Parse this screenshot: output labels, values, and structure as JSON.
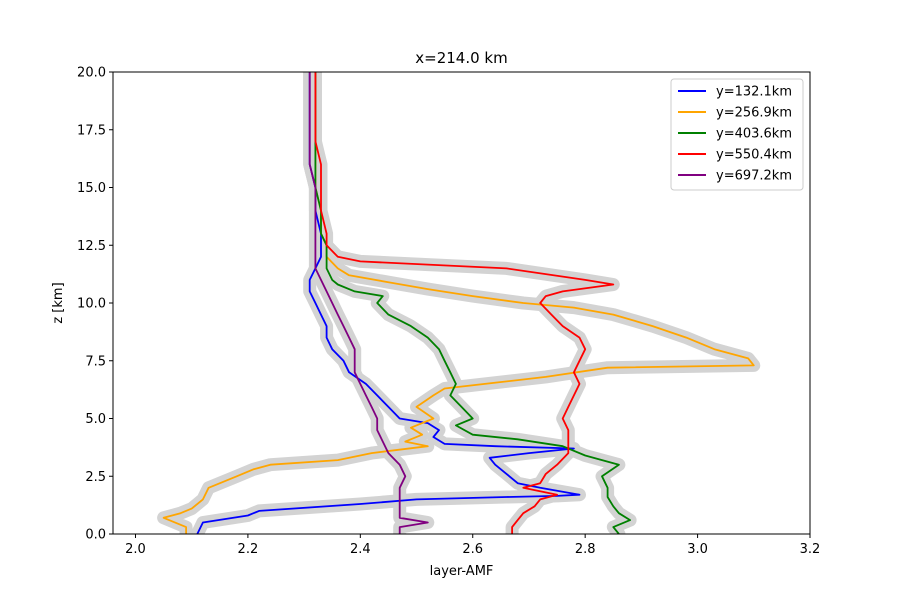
{
  "chart_data": {
    "type": "line",
    "title": "x=214.0 km",
    "xlabel": "layer-AMF",
    "ylabel": "z [km]",
    "xlim": [
      1.96,
      3.2
    ],
    "ylim": [
      0,
      20
    ],
    "xticks": [
      "2.0",
      "2.2",
      "2.4",
      "2.6",
      "2.8",
      "3.0",
      "3.2"
    ],
    "xtick_values": [
      2.0,
      2.2,
      2.4,
      2.6,
      2.8,
      3.0,
      3.2
    ],
    "yticks": [
      "0.0",
      "2.5",
      "5.0",
      "7.5",
      "10.0",
      "12.5",
      "15.0",
      "17.5",
      "20.0"
    ],
    "ytick_values": [
      0,
      2.5,
      5,
      7.5,
      10,
      12.5,
      15,
      17.5,
      20
    ],
    "grid": false,
    "legend_position": "upper right",
    "uncertainty_band_color": "#d3d3d3",
    "series": [
      {
        "name": "y=132.1km",
        "color": "#0000ff",
        "points": [
          [
            2.11,
            0
          ],
          [
            2.12,
            0.5
          ],
          [
            2.2,
            0.8
          ],
          [
            2.22,
            1.0
          ],
          [
            2.4,
            1.3
          ],
          [
            2.5,
            1.5
          ],
          [
            2.66,
            1.6
          ],
          [
            2.75,
            1.65
          ],
          [
            2.79,
            1.7
          ],
          [
            2.72,
            2.0
          ],
          [
            2.68,
            2.2
          ],
          [
            2.66,
            2.6
          ],
          [
            2.64,
            3.0
          ],
          [
            2.63,
            3.3
          ],
          [
            2.7,
            3.5
          ],
          [
            2.78,
            3.7
          ],
          [
            2.64,
            3.8
          ],
          [
            2.55,
            3.9
          ],
          [
            2.53,
            4.2
          ],
          [
            2.54,
            4.5
          ],
          [
            2.52,
            4.8
          ],
          [
            2.47,
            5.0
          ],
          [
            2.45,
            5.5
          ],
          [
            2.43,
            6.0
          ],
          [
            2.41,
            6.5
          ],
          [
            2.38,
            7.0
          ],
          [
            2.37,
            7.5
          ],
          [
            2.35,
            8.0
          ],
          [
            2.34,
            8.5
          ],
          [
            2.34,
            9.0
          ],
          [
            2.33,
            9.5
          ],
          [
            2.32,
            10.0
          ],
          [
            2.31,
            10.5
          ],
          [
            2.31,
            11.0
          ],
          [
            2.32,
            11.5
          ],
          [
            2.33,
            12.0
          ],
          [
            2.33,
            12.5
          ],
          [
            2.33,
            13.0
          ],
          [
            2.32,
            14.0
          ],
          [
            2.32,
            15.0
          ],
          [
            2.31,
            16.0
          ],
          [
            2.31,
            17.0
          ],
          [
            2.31,
            18.0
          ],
          [
            2.31,
            19.0
          ],
          [
            2.31,
            20.0
          ]
        ]
      },
      {
        "name": "y=256.9km",
        "color": "#ffa500",
        "points": [
          [
            2.09,
            0
          ],
          [
            2.09,
            0.3
          ],
          [
            2.05,
            0.7
          ],
          [
            2.08,
            0.9
          ],
          [
            2.1,
            1.1
          ],
          [
            2.12,
            1.5
          ],
          [
            2.13,
            2.0
          ],
          [
            2.18,
            2.5
          ],
          [
            2.21,
            2.8
          ],
          [
            2.24,
            3.0
          ],
          [
            2.36,
            3.2
          ],
          [
            2.42,
            3.5
          ],
          [
            2.52,
            3.8
          ],
          [
            2.48,
            4.0
          ],
          [
            2.51,
            4.3
          ],
          [
            2.49,
            4.6
          ],
          [
            2.53,
            5.0
          ],
          [
            2.5,
            5.5
          ],
          [
            2.53,
            6.0
          ],
          [
            2.55,
            6.3
          ],
          [
            2.73,
            6.8
          ],
          [
            2.84,
            7.2
          ],
          [
            3.1,
            7.3
          ],
          [
            3.09,
            7.6
          ],
          [
            3.03,
            8.0
          ],
          [
            2.98,
            8.5
          ],
          [
            2.92,
            9.0
          ],
          [
            2.85,
            9.5
          ],
          [
            2.78,
            9.8
          ],
          [
            2.69,
            10.0
          ],
          [
            2.6,
            10.3
          ],
          [
            2.52,
            10.6
          ],
          [
            2.45,
            10.9
          ],
          [
            2.38,
            11.2
          ],
          [
            2.36,
            11.5
          ],
          [
            2.34,
            12.0
          ],
          [
            2.34,
            12.5
          ],
          [
            2.33,
            13.0
          ],
          [
            2.33,
            14.0
          ],
          [
            2.32,
            15.0
          ],
          [
            2.32,
            16.0
          ],
          [
            2.32,
            17.0
          ],
          [
            2.32,
            18.0
          ],
          [
            2.32,
            19.0
          ],
          [
            2.32,
            20.0
          ]
        ]
      },
      {
        "name": "y=403.6km",
        "color": "#008000",
        "points": [
          [
            2.86,
            0
          ],
          [
            2.85,
            0.3
          ],
          [
            2.88,
            0.6
          ],
          [
            2.86,
            0.9
          ],
          [
            2.85,
            1.2
          ],
          [
            2.84,
            1.6
          ],
          [
            2.84,
            2.0
          ],
          [
            2.83,
            2.5
          ],
          [
            2.86,
            3.0
          ],
          [
            2.8,
            3.4
          ],
          [
            2.76,
            3.8
          ],
          [
            2.68,
            4.1
          ],
          [
            2.6,
            4.3
          ],
          [
            2.57,
            4.7
          ],
          [
            2.6,
            5.0
          ],
          [
            2.58,
            5.5
          ],
          [
            2.56,
            6.0
          ],
          [
            2.57,
            6.5
          ],
          [
            2.56,
            7.0
          ],
          [
            2.55,
            7.5
          ],
          [
            2.54,
            8.0
          ],
          [
            2.52,
            8.5
          ],
          [
            2.49,
            9.0
          ],
          [
            2.45,
            9.5
          ],
          [
            2.43,
            10.0
          ],
          [
            2.44,
            10.3
          ],
          [
            2.39,
            10.5
          ],
          [
            2.36,
            10.8
          ],
          [
            2.35,
            11.0
          ],
          [
            2.34,
            11.5
          ],
          [
            2.34,
            12.0
          ],
          [
            2.34,
            12.5
          ],
          [
            2.33,
            13.0
          ],
          [
            2.33,
            14.0
          ],
          [
            2.32,
            15.0
          ],
          [
            2.32,
            16.0
          ],
          [
            2.32,
            17.0
          ],
          [
            2.32,
            18.0
          ],
          [
            2.32,
            19.0
          ],
          [
            2.32,
            20.0
          ]
        ]
      },
      {
        "name": "y=550.4km",
        "color": "#ff0000",
        "points": [
          [
            2.67,
            0
          ],
          [
            2.67,
            0.3
          ],
          [
            2.68,
            0.6
          ],
          [
            2.69,
            0.9
          ],
          [
            2.71,
            1.2
          ],
          [
            2.72,
            1.5
          ],
          [
            2.75,
            1.7
          ],
          [
            2.71,
            1.9
          ],
          [
            2.69,
            2.0
          ],
          [
            2.72,
            2.2
          ],
          [
            2.73,
            2.6
          ],
          [
            2.75,
            3.0
          ],
          [
            2.77,
            3.5
          ],
          [
            2.77,
            4.0
          ],
          [
            2.77,
            4.5
          ],
          [
            2.76,
            5.0
          ],
          [
            2.77,
            5.5
          ],
          [
            2.78,
            6.0
          ],
          [
            2.79,
            6.5
          ],
          [
            2.78,
            7.0
          ],
          [
            2.79,
            7.5
          ],
          [
            2.8,
            8.0
          ],
          [
            2.79,
            8.5
          ],
          [
            2.76,
            9.0
          ],
          [
            2.74,
            9.5
          ],
          [
            2.72,
            10.0
          ],
          [
            2.73,
            10.3
          ],
          [
            2.76,
            10.5
          ],
          [
            2.85,
            10.8
          ],
          [
            2.8,
            11.0
          ],
          [
            2.66,
            11.5
          ],
          [
            2.4,
            11.8
          ],
          [
            2.36,
            12.0
          ],
          [
            2.34,
            12.5
          ],
          [
            2.34,
            13.0
          ],
          [
            2.33,
            14.0
          ],
          [
            2.33,
            15.0
          ],
          [
            2.33,
            16.0
          ],
          [
            2.32,
            17.0
          ],
          [
            2.32,
            18.0
          ],
          [
            2.32,
            19.0
          ],
          [
            2.32,
            20.0
          ]
        ]
      },
      {
        "name": "y=697.2km",
        "color": "#800080",
        "points": [
          [
            2.47,
            0
          ],
          [
            2.47,
            0.3
          ],
          [
            2.52,
            0.5
          ],
          [
            2.47,
            0.7
          ],
          [
            2.47,
            1.0
          ],
          [
            2.47,
            1.5
          ],
          [
            2.47,
            2.0
          ],
          [
            2.48,
            2.5
          ],
          [
            2.47,
            3.0
          ],
          [
            2.45,
            3.5
          ],
          [
            2.44,
            4.0
          ],
          [
            2.43,
            4.5
          ],
          [
            2.43,
            5.0
          ],
          [
            2.42,
            5.5
          ],
          [
            2.41,
            6.0
          ],
          [
            2.4,
            6.5
          ],
          [
            2.39,
            7.0
          ],
          [
            2.39,
            7.5
          ],
          [
            2.39,
            8.0
          ],
          [
            2.38,
            8.5
          ],
          [
            2.37,
            9.0
          ],
          [
            2.36,
            9.5
          ],
          [
            2.35,
            10.0
          ],
          [
            2.34,
            10.5
          ],
          [
            2.33,
            11.0
          ],
          [
            2.32,
            11.5
          ],
          [
            2.32,
            12.0
          ],
          [
            2.32,
            12.5
          ],
          [
            2.32,
            13.0
          ],
          [
            2.32,
            14.0
          ],
          [
            2.32,
            15.0
          ],
          [
            2.31,
            16.0
          ],
          [
            2.31,
            17.0
          ],
          [
            2.31,
            18.0
          ],
          [
            2.31,
            19.0
          ],
          [
            2.31,
            20.0
          ]
        ]
      }
    ]
  }
}
